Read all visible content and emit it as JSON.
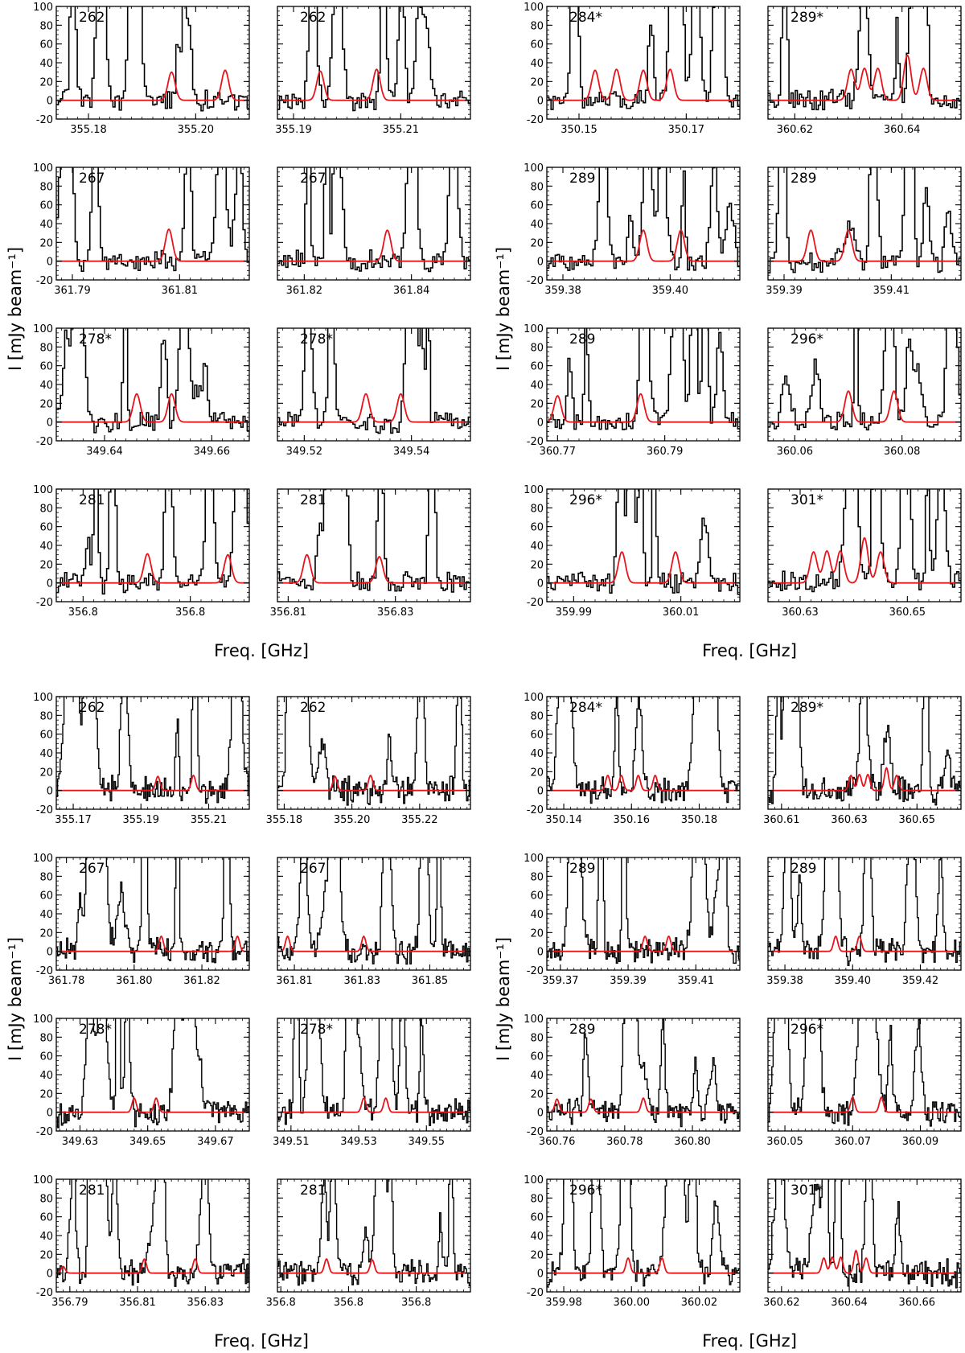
{
  "figure": {
    "ylabel": "I [mJy beam⁻¹]",
    "xlabel": "Freq. [GHz]",
    "colors": {
      "spectrum": "#000000",
      "model": "#e8141b",
      "frame": "#000000"
    }
  },
  "chart_data": [
    {
      "type": "line",
      "title": "Observed spectra (black, histogram) with synthetic line model (red), upper figure",
      "ylabel": "I [mJy beam⁻¹]",
      "xlabel": "Freq. [GHz]",
      "ylim": [
        -20,
        100
      ],
      "y_ticks": [
        -20,
        0,
        20,
        40,
        60,
        80,
        100
      ],
      "panels": [
        {
          "label": "262",
          "xlim": [
            355.174,
            355.21
          ],
          "x_ticks": [
            355.18,
            355.2
          ],
          "model_peaks": [
            {
              "x": 355.1955,
              "y": 30
            },
            {
              "x": 355.2055,
              "y": 32
            }
          ]
        },
        {
          "label": "262",
          "xlim": [
            355.187,
            355.223
          ],
          "x_ticks": [
            355.19,
            355.21
          ],
          "model_peaks": [
            {
              "x": 355.195,
              "y": 31
            },
            {
              "x": 355.2055,
              "y": 33
            }
          ]
        },
        {
          "label": "284*",
          "xlim": [
            350.144,
            350.18
          ],
          "x_ticks": [
            350.15,
            350.17
          ],
          "model_peaks": [
            {
              "x": 350.153,
              "y": 32
            },
            {
              "x": 350.157,
              "y": 33
            },
            {
              "x": 350.162,
              "y": 32
            },
            {
              "x": 350.167,
              "y": 33
            }
          ]
        },
        {
          "label": "289*",
          "xlim": [
            360.615,
            360.651
          ],
          "x_ticks": [
            360.62,
            360.64
          ],
          "model_peaks": [
            {
              "x": 360.6305,
              "y": 33
            },
            {
              "x": 360.633,
              "y": 34
            },
            {
              "x": 360.6355,
              "y": 34
            },
            {
              "x": 360.641,
              "y": 48
            },
            {
              "x": 360.644,
              "y": 34
            }
          ]
        },
        {
          "label": "267",
          "xlim": [
            361.787,
            361.823
          ],
          "x_ticks": [
            361.79,
            361.81
          ],
          "model_peaks": [
            {
              "x": 361.808,
              "y": 34
            }
          ]
        },
        {
          "label": "267",
          "xlim": [
            361.815,
            361.851
          ],
          "x_ticks": [
            361.82,
            361.84
          ],
          "model_peaks": [
            {
              "x": 361.8355,
              "y": 33
            }
          ]
        },
        {
          "label": "289",
          "xlim": [
            359.377,
            359.413
          ],
          "x_ticks": [
            359.38,
            359.4
          ],
          "model_peaks": [
            {
              "x": 359.395,
              "y": 33
            },
            {
              "x": 359.402,
              "y": 33
            }
          ]
        },
        {
          "label": "289",
          "xlim": [
            359.387,
            359.423
          ],
          "x_ticks": [
            359.39,
            359.41
          ],
          "model_peaks": [
            {
              "x": 359.395,
              "y": 33
            },
            {
              "x": 359.402,
              "y": 33
            }
          ]
        },
        {
          "label": "278*",
          "xlim": [
            349.631,
            349.667
          ],
          "x_ticks": [
            349.64,
            349.66
          ],
          "model_peaks": [
            {
              "x": 349.646,
              "y": 30
            },
            {
              "x": 349.6525,
              "y": 30
            }
          ]
        },
        {
          "label": "278*",
          "xlim": [
            349.515,
            349.551
          ],
          "x_ticks": [
            349.52,
            349.54
          ],
          "model_peaks": [
            {
              "x": 349.5315,
              "y": 30
            },
            {
              "x": 349.538,
              "y": 30
            }
          ]
        },
        {
          "label": "289",
          "xlim": [
            360.768,
            360.804
          ],
          "x_ticks": [
            360.77,
            360.79
          ],
          "model_peaks": [
            {
              "x": 360.77,
              "y": 28
            },
            {
              "x": 360.7855,
              "y": 30
            }
          ]
        },
        {
          "label": "296*",
          "xlim": [
            360.055,
            360.091
          ],
          "x_ticks": [
            360.06,
            360.08
          ],
          "model_peaks": [
            {
              "x": 360.07,
              "y": 33
            },
            {
              "x": 360.0785,
              "y": 33
            }
          ]
        },
        {
          "label": "281",
          "xlim": [
            356.795,
            356.831
          ],
          "x_ticks": [
            356.8,
            356.82
          ],
          "model_peaks": [
            {
              "x": 356.812,
              "y": 31
            },
            {
              "x": 356.827,
              "y": 30
            }
          ]
        },
        {
          "label": "281",
          "xlim": [
            356.808,
            356.844
          ],
          "x_ticks": [
            356.81,
            356.83
          ],
          "model_peaks": [
            {
              "x": 356.8135,
              "y": 30
            },
            {
              "x": 356.827,
              "y": 28
            }
          ]
        },
        {
          "label": "296*",
          "xlim": [
            359.985,
            360.021
          ],
          "x_ticks": [
            359.99,
            360.01
          ],
          "model_peaks": [
            {
              "x": 359.999,
              "y": 33
            },
            {
              "x": 360.009,
              "y": 33
            }
          ]
        },
        {
          "label": "301*",
          "xlim": [
            360.624,
            360.66
          ],
          "x_ticks": [
            360.63,
            360.65
          ],
          "model_peaks": [
            {
              "x": 360.6325,
              "y": 33
            },
            {
              "x": 360.635,
              "y": 34
            },
            {
              "x": 360.6375,
              "y": 34
            },
            {
              "x": 360.642,
              "y": 48
            },
            {
              "x": 360.645,
              "y": 33
            }
          ]
        }
      ]
    },
    {
      "type": "line",
      "title": "Observed spectra (black, histogram) with synthetic line model (red), lower figure",
      "ylabel": "I [mJy beam⁻¹]",
      "xlabel": "Freq. [GHz]",
      "ylim": [
        -20,
        100
      ],
      "y_ticks": [
        -20,
        0,
        20,
        40,
        60,
        80,
        100
      ],
      "panels": [
        {
          "label": "262",
          "xlim": [
            355.165,
            355.222
          ],
          "x_ticks": [
            355.17,
            355.19,
            355.21
          ],
          "model_peaks": [
            {
              "x": 355.195,
              "y": 15
            },
            {
              "x": 355.2055,
              "y": 16
            }
          ]
        },
        {
          "label": "262",
          "xlim": [
            355.178,
            355.235
          ],
          "x_ticks": [
            355.18,
            355.2,
            355.22
          ],
          "model_peaks": [
            {
              "x": 355.195,
              "y": 15
            },
            {
              "x": 355.2055,
              "y": 16
            }
          ]
        },
        {
          "label": "284*",
          "xlim": [
            350.135,
            350.192
          ],
          "x_ticks": [
            350.14,
            350.16,
            350.18
          ],
          "model_peaks": [
            {
              "x": 350.153,
              "y": 16
            },
            {
              "x": 350.157,
              "y": 16
            },
            {
              "x": 350.162,
              "y": 16
            },
            {
              "x": 350.167,
              "y": 16
            }
          ]
        },
        {
          "label": "289*",
          "xlim": [
            360.606,
            360.663
          ],
          "x_ticks": [
            360.61,
            360.63,
            360.65
          ],
          "model_peaks": [
            {
              "x": 360.6305,
              "y": 16
            },
            {
              "x": 360.633,
              "y": 17
            },
            {
              "x": 360.6355,
              "y": 17
            },
            {
              "x": 360.641,
              "y": 24
            },
            {
              "x": 360.644,
              "y": 16
            }
          ]
        },
        {
          "label": "267",
          "xlim": [
            361.777,
            361.834
          ],
          "x_ticks": [
            361.78,
            361.8,
            361.82
          ],
          "model_peaks": [
            {
              "x": 361.808,
              "y": 16
            },
            {
              "x": 361.8305,
              "y": 16
            }
          ]
        },
        {
          "label": "267",
          "xlim": [
            361.805,
            361.862
          ],
          "x_ticks": [
            361.81,
            361.83,
            361.85
          ],
          "model_peaks": [
            {
              "x": 361.808,
              "y": 16
            },
            {
              "x": 361.8305,
              "y": 16
            }
          ]
        },
        {
          "label": "289",
          "xlim": [
            359.366,
            359.423
          ],
          "x_ticks": [
            359.37,
            359.39,
            359.41
          ],
          "model_peaks": [
            {
              "x": 359.395,
              "y": 16
            },
            {
              "x": 359.402,
              "y": 16
            }
          ]
        },
        {
          "label": "289",
          "xlim": [
            359.375,
            359.432
          ],
          "x_ticks": [
            359.38,
            359.4,
            359.42
          ],
          "model_peaks": [
            {
              "x": 359.395,
              "y": 16
            },
            {
              "x": 359.402,
              "y": 16
            }
          ]
        },
        {
          "label": "278*",
          "xlim": [
            349.623,
            349.68
          ],
          "x_ticks": [
            349.63,
            349.65,
            349.67
          ],
          "model_peaks": [
            {
              "x": 349.646,
              "y": 15
            },
            {
              "x": 349.6525,
              "y": 15
            }
          ]
        },
        {
          "label": "278*",
          "xlim": [
            349.506,
            349.563
          ],
          "x_ticks": [
            349.51,
            349.53,
            349.55
          ],
          "model_peaks": [
            {
              "x": 349.5315,
              "y": 15
            },
            {
              "x": 349.538,
              "y": 15
            }
          ]
        },
        {
          "label": "289",
          "xlim": [
            360.757,
            360.814
          ],
          "x_ticks": [
            360.76,
            360.78,
            360.8
          ],
          "model_peaks": [
            {
              "x": 360.76,
              "y": 14
            },
            {
              "x": 360.77,
              "y": 14
            },
            {
              "x": 360.7855,
              "y": 15
            }
          ]
        },
        {
          "label": "296*",
          "xlim": [
            360.045,
            360.102
          ],
          "x_ticks": [
            360.05,
            360.07,
            360.09
          ],
          "model_peaks": [
            {
              "x": 360.07,
              "y": 16
            },
            {
              "x": 360.0785,
              "y": 16
            }
          ]
        },
        {
          "label": "281",
          "xlim": [
            356.786,
            356.843
          ],
          "x_ticks": [
            356.79,
            356.81,
            356.83
          ],
          "model_peaks": [
            {
              "x": 356.788,
              "y": 7
            },
            {
              "x": 356.812,
              "y": 15
            },
            {
              "x": 356.827,
              "y": 15
            }
          ]
        },
        {
          "label": "281",
          "xlim": [
            356.799,
            356.856
          ],
          "x_ticks": [
            356.8,
            356.82,
            356.84
          ],
          "model_peaks": [
            {
              "x": 356.8135,
              "y": 15
            },
            {
              "x": 356.827,
              "y": 14
            }
          ]
        },
        {
          "label": "296*",
          "xlim": [
            359.975,
            360.032
          ],
          "x_ticks": [
            359.98,
            360.0,
            360.02
          ],
          "model_peaks": [
            {
              "x": 359.999,
              "y": 16
            },
            {
              "x": 360.009,
              "y": 16
            }
          ]
        },
        {
          "label": "301*",
          "xlim": [
            360.616,
            360.673
          ],
          "x_ticks": [
            360.62,
            360.64,
            360.66
          ],
          "model_peaks": [
            {
              "x": 360.6325,
              "y": 16
            },
            {
              "x": 360.635,
              "y": 17
            },
            {
              "x": 360.6375,
              "y": 17
            },
            {
              "x": 360.642,
              "y": 24
            },
            {
              "x": 360.645,
              "y": 16
            }
          ]
        }
      ]
    }
  ]
}
